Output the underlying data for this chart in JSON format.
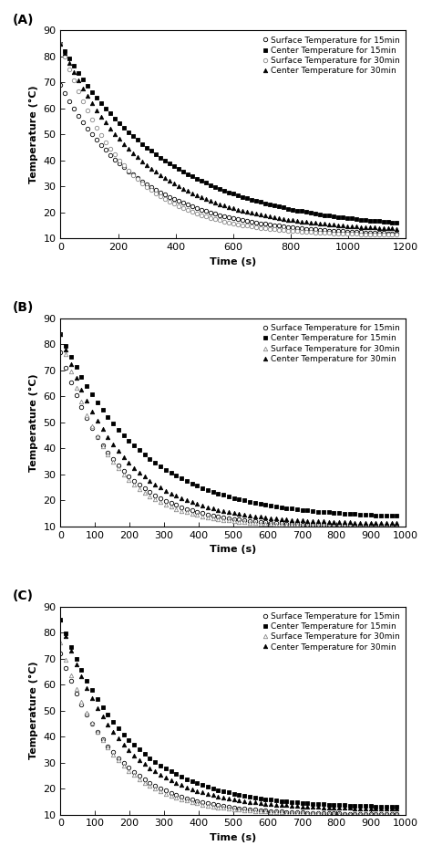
{
  "panels": [
    {
      "label": "(A)",
      "xlim": [
        0,
        1200
      ],
      "xticks": [
        0,
        200,
        400,
        600,
        800,
        1000,
        1200
      ],
      "series": [
        {
          "name": "Surface Temperature for 15min",
          "marker": "o",
          "filled": false,
          "color": "black",
          "T0": 69.0,
          "tau": 280,
          "T_inf": 11.0,
          "n_points": 75
        },
        {
          "name": "Center Temperature for 15min",
          "marker": "s",
          "filled": true,
          "color": "black",
          "T0": 85.0,
          "tau": 370,
          "T_inf": 13.0,
          "n_points": 75
        },
        {
          "name": "Surface Temperature for 30min",
          "marker": "o",
          "filled": false,
          "color": "gray",
          "T0": 85.0,
          "tau": 220,
          "T_inf": 11.0,
          "n_points": 75
        },
        {
          "name": "Center Temperature for 30min",
          "marker": "^",
          "filled": true,
          "color": "black",
          "T0": 85.0,
          "tau": 290,
          "T_inf": 12.5,
          "n_points": 75
        }
      ]
    },
    {
      "label": "(B)",
      "xlim": [
        0,
        1000
      ],
      "xticks": [
        0,
        100,
        200,
        300,
        400,
        500,
        600,
        700,
        800,
        900,
        1000
      ],
      "series": [
        {
          "name": "Surface Temperature for 15min",
          "marker": "o",
          "filled": false,
          "color": "black",
          "T0": 77.0,
          "tau": 160,
          "T_inf": 10.0,
          "n_points": 65
        },
        {
          "name": "Center Temperature for 15min",
          "marker": "s",
          "filled": true,
          "color": "black",
          "T0": 84.0,
          "tau": 230,
          "T_inf": 13.0,
          "n_points": 65
        },
        {
          "name": "Surface Temperature for 30min",
          "marker": "^",
          "filled": false,
          "color": "gray",
          "T0": 84.0,
          "tau": 140,
          "T_inf": 10.0,
          "n_points": 65
        },
        {
          "name": "Center Temperature for 30min",
          "marker": "^",
          "filled": true,
          "color": "black",
          "T0": 84.0,
          "tau": 175,
          "T_inf": 11.0,
          "n_points": 65
        }
      ]
    },
    {
      "label": "(C)",
      "xlim": [
        0,
        1000
      ],
      "xticks": [
        0,
        100,
        200,
        300,
        400,
        500,
        600,
        700,
        800,
        900,
        1000
      ],
      "series": [
        {
          "name": "Surface Temperature for 15min",
          "marker": "o",
          "filled": false,
          "color": "black",
          "T0": 72.0,
          "tau": 160,
          "T_inf": 10.0,
          "n_points": 65
        },
        {
          "name": "Center Temperature for 15min",
          "marker": "s",
          "filled": true,
          "color": "black",
          "T0": 85.0,
          "tau": 195,
          "T_inf": 12.5,
          "n_points": 65
        },
        {
          "name": "Surface Temperature for 30min",
          "marker": "^",
          "filled": false,
          "color": "gray",
          "T0": 76.0,
          "tau": 145,
          "T_inf": 10.0,
          "n_points": 65
        },
        {
          "name": "Center Temperature for 30min",
          "marker": "^",
          "filled": true,
          "color": "black",
          "T0": 85.0,
          "tau": 170,
          "T_inf": 12.0,
          "n_points": 65
        }
      ]
    }
  ],
  "ylabel": "Temperature (°C)",
  "xlabel": "Time (s)",
  "ylim": [
    10,
    90
  ],
  "yticks": [
    10,
    20,
    30,
    40,
    50,
    60,
    70,
    80,
    90
  ],
  "legend_labels": [
    "Surface Temperature for 15min",
    "Center Temperature for 15min",
    "Surface Temperature for 30min",
    "Center Temperature for 30min"
  ],
  "background_color": "#ffffff",
  "fontsize": 8
}
